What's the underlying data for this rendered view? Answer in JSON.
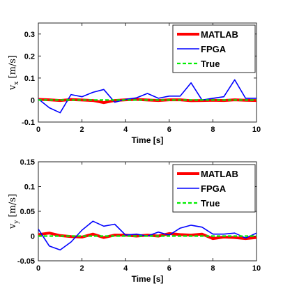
{
  "chart_data": [
    {
      "type": "line",
      "ylabel_main": "v",
      "ylabel_sub": "x",
      "ylabel_unit": "[m/s]",
      "xlabel": "Time [s]",
      "xlim": [
        0,
        10
      ],
      "ylim": [
        -0.1,
        0.35
      ],
      "xticks": [
        "0",
        "2",
        "4",
        "6",
        "8",
        "10"
      ],
      "xtick_values": [
        0,
        2,
        4,
        6,
        8,
        10
      ],
      "yticks": [
        "-0.1",
        "0",
        "0.1",
        "0.2",
        "0.3"
      ],
      "ytick_values": [
        -0.1,
        0,
        0.1,
        0.2,
        0.3
      ],
      "legend_position": "top-right",
      "series": [
        {
          "name": "MATLAB",
          "color": "#ff0000",
          "style": "solid-thick",
          "x": [
            0,
            0.5,
            1,
            1.5,
            2,
            2.5,
            3,
            3.5,
            4,
            4.5,
            5,
            5.5,
            6,
            6.5,
            7,
            7.5,
            8,
            8.5,
            9,
            9.5,
            10
          ],
          "y": [
            0.003,
            0.001,
            -0.002,
            0.002,
            0.0,
            -0.002,
            -0.012,
            -0.002,
            0.001,
            0.003,
            0.0,
            -0.002,
            0.001,
            0.001,
            -0.003,
            -0.002,
            -0.001,
            -0.002,
            0.001,
            -0.001,
            -0.002
          ]
        },
        {
          "name": "FPGA",
          "color": "#0000ff",
          "style": "solid",
          "x": [
            0,
            0.5,
            1,
            1.5,
            2,
            2.5,
            3,
            3.5,
            4,
            4.5,
            5,
            5.5,
            6,
            6.5,
            7,
            7.5,
            8,
            8.5,
            9,
            9.5,
            10
          ],
          "y": [
            0.005,
            -0.035,
            -0.058,
            0.025,
            0.015,
            0.035,
            0.048,
            -0.01,
            0.003,
            0.01,
            0.03,
            0.008,
            0.018,
            0.018,
            0.078,
            0.0,
            0.008,
            0.015,
            0.092,
            0.008,
            0.008
          ]
        },
        {
          "name": "True",
          "color": "#00ee00",
          "style": "dashed",
          "x": [
            0,
            10
          ],
          "y": [
            0.0,
            0.0
          ]
        }
      ]
    },
    {
      "type": "line",
      "ylabel_main": "v",
      "ylabel_sub": "y",
      "ylabel_unit": "[m/s]",
      "xlabel": "Time [s]",
      "xlim": [
        0,
        10
      ],
      "ylim": [
        -0.05,
        0.15
      ],
      "xticks": [
        "0",
        "2",
        "4",
        "6",
        "8",
        "10"
      ],
      "xtick_values": [
        0,
        2,
        4,
        6,
        8,
        10
      ],
      "yticks": [
        "-0.05",
        "0",
        "0.05",
        "0.1",
        "0.15"
      ],
      "ytick_values": [
        -0.05,
        0,
        0.05,
        0.1,
        0.15
      ],
      "legend_position": "top-right",
      "series": [
        {
          "name": "MATLAB",
          "color": "#ff0000",
          "style": "solid-thick",
          "x": [
            0,
            0.5,
            1,
            1.5,
            2,
            2.5,
            3,
            3.5,
            4,
            4.5,
            5,
            5.5,
            6,
            6.5,
            7,
            7.5,
            8,
            8.5,
            9,
            9.5,
            10
          ],
          "y": [
            0.003,
            0.006,
            0.001,
            -0.001,
            -0.002,
            0.004,
            -0.003,
            0.002,
            0.002,
            0.0,
            0.002,
            0.0,
            0.005,
            0.003,
            0.002,
            0.004,
            -0.005,
            -0.002,
            -0.003,
            -0.005,
            -0.003
          ]
        },
        {
          "name": "FPGA",
          "color": "#0000ff",
          "style": "solid",
          "x": [
            0,
            0.5,
            1,
            1.5,
            2,
            2.5,
            3,
            3.5,
            4,
            4.5,
            5,
            5.5,
            6,
            6.5,
            7,
            7.5,
            8,
            8.5,
            9,
            9.5,
            10
          ],
          "y": [
            0.014,
            -0.02,
            -0.028,
            -0.012,
            0.012,
            0.03,
            0.02,
            0.024,
            0.002,
            0.004,
            0.0,
            0.008,
            0.002,
            0.016,
            0.022,
            0.018,
            0.004,
            0.004,
            0.006,
            -0.004,
            0.006
          ]
        },
        {
          "name": "True",
          "color": "#00ee00",
          "style": "dashed",
          "x": [
            0,
            10
          ],
          "y": [
            0.0,
            0.0
          ]
        }
      ]
    }
  ]
}
